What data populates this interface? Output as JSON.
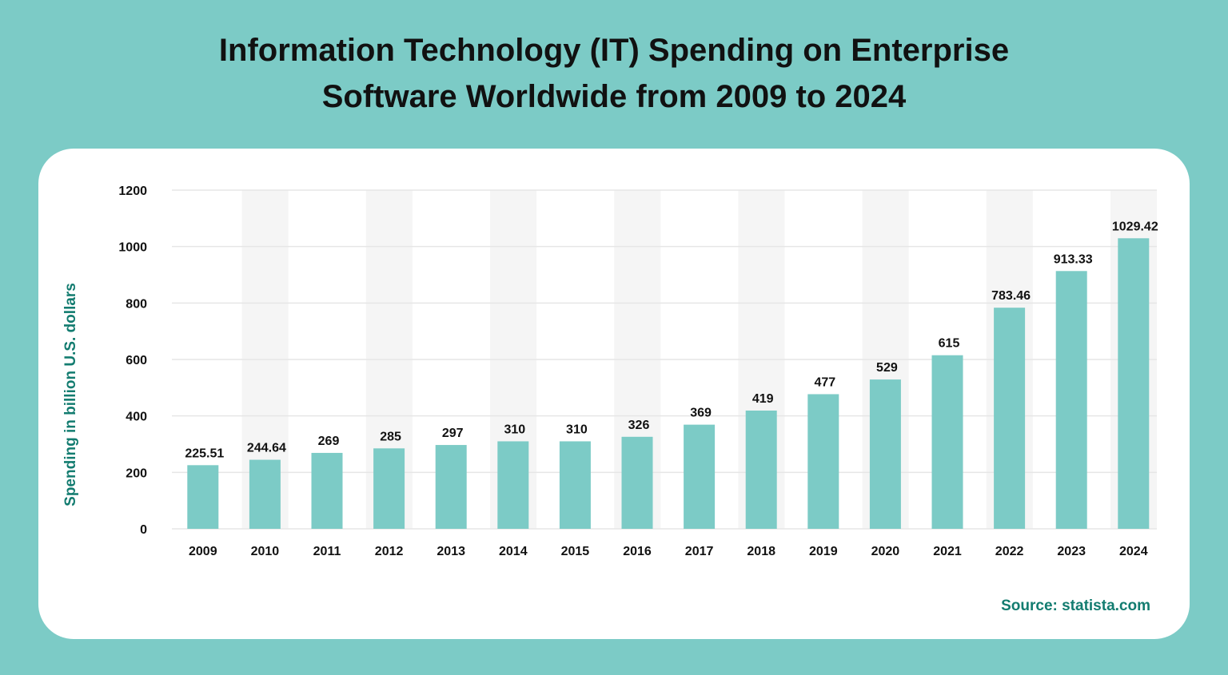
{
  "chart_data": {
    "type": "bar",
    "title": "Information Technology (IT) Spending on Enterprise Software Worldwide from 2009 to 2024",
    "title_lines": [
      "Information Technology (IT) Spending on Enterprise",
      "Software Worldwide from 2009 to 2024"
    ],
    "xlabel": "",
    "ylabel": "Spending in billion U.S. dollars",
    "ylim": [
      0,
      1200
    ],
    "yticks": [
      0,
      200,
      400,
      600,
      800,
      1000,
      1200
    ],
    "categories": [
      "2009",
      "2010",
      "2011",
      "2012",
      "2013",
      "2014",
      "2015",
      "2016",
      "2017",
      "2018",
      "2019",
      "2020",
      "2021",
      "2022",
      "2023",
      "2024"
    ],
    "values": [
      225.51,
      244.64,
      269,
      285,
      297,
      310,
      310,
      326,
      369,
      419,
      477,
      529,
      615,
      783.46,
      913.33,
      1029.42
    ],
    "data_labels": [
      "225.51",
      "244.64",
      "269",
      "285",
      "297",
      "310",
      "310",
      "326",
      "369",
      "419",
      "477",
      "529",
      "615",
      "783.46",
      "913.33",
      "1029.42"
    ],
    "grid": true,
    "alternating_band_shading": true,
    "legend": "none",
    "source": "Source: statista.com",
    "colors": {
      "background": "#7ccbc6",
      "bar": "#7ccbc6",
      "band": "#f5f5f5",
      "grid": "#e6e6e6",
      "ylabel": "#137c70",
      "source": "#137c70"
    }
  }
}
